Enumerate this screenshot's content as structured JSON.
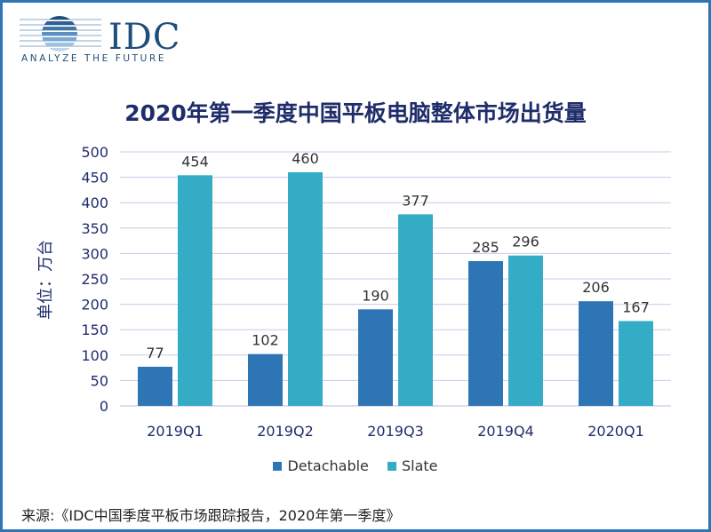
{
  "logo": {
    "brand": "IDC",
    "tagline": "ANALYZE THE FUTURE"
  },
  "source": "来源:《IDC中国季度平板市场跟踪报告，2020年第一季度》",
  "colors": {
    "detachable": "#2e75b6",
    "slate": "#34acc6",
    "grid": "#c9c9e6",
    "text": "#1f2d6b",
    "border": "#2e75b6"
  },
  "chart_data": {
    "type": "bar",
    "title": "2020年第一季度中国平板电脑整体市场出货量",
    "ylabel": "单位：万台",
    "xlabel": "",
    "categories": [
      "2019Q1",
      "2019Q2",
      "2019Q3",
      "2019Q4",
      "2020Q1"
    ],
    "series": [
      {
        "name": "Detachable",
        "values": [
          77,
          102,
          190,
          285,
          206
        ]
      },
      {
        "name": "Slate",
        "values": [
          454,
          460,
          377,
          296,
          167
        ]
      }
    ],
    "ylim": [
      0,
      500
    ],
    "yticks": [
      0,
      50,
      100,
      150,
      200,
      250,
      300,
      350,
      400,
      450,
      500
    ],
    "grid": true,
    "legend": "bottom"
  }
}
